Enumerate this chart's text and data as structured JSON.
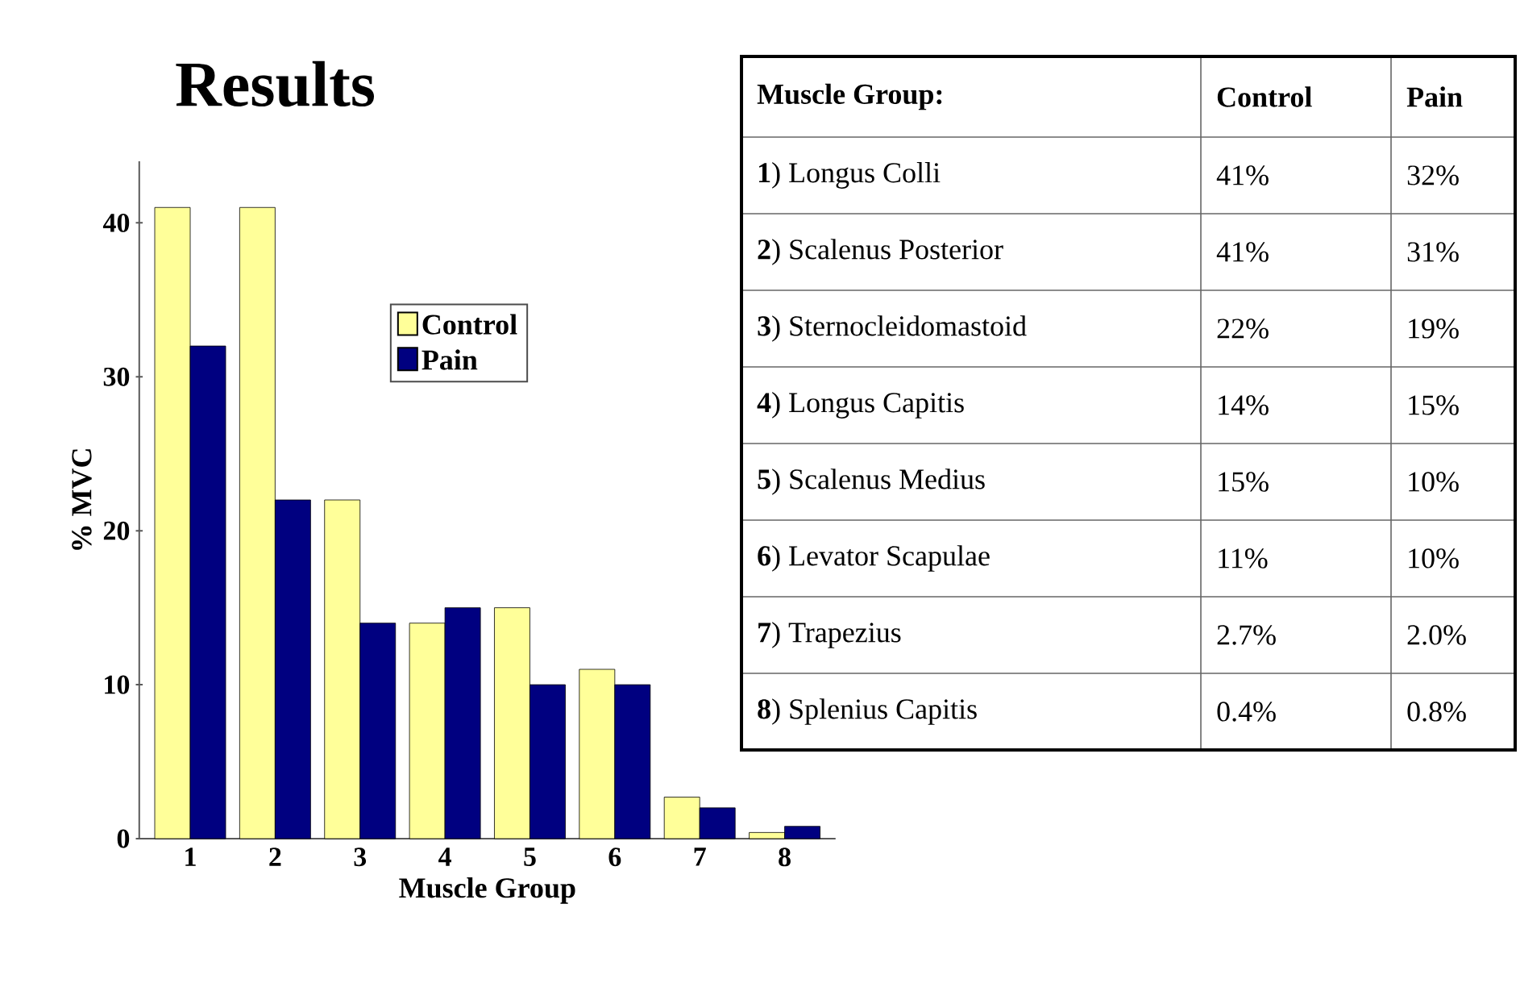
{
  "chart_data": {
    "type": "bar",
    "title": "Results",
    "xlabel": "Muscle Group",
    "ylabel": "% MVC",
    "categories": [
      "1",
      "2",
      "3",
      "4",
      "5",
      "6",
      "7",
      "8"
    ],
    "series": [
      {
        "name": "Control",
        "color": "#ffff99",
        "values": [
          41,
          41,
          22,
          14,
          15,
          11,
          2.7,
          0.4
        ]
      },
      {
        "name": "Pain",
        "color": "#000080",
        "values": [
          32,
          22,
          14,
          15,
          10,
          10,
          2,
          0.8
        ]
      }
    ],
    "ylim": [
      0,
      44
    ],
    "yticks": [
      0,
      10,
      20,
      30,
      40
    ],
    "grid": false,
    "legend": "top",
    "annotations": [
      "Muscle Group:",
      "Control",
      "Pain",
      "**1**) Longus Colli",
      "41%",
      "32%",
      "**2**) Scalenus Posterior",
      "41%",
      "31%",
      "**3**) Sternocleidomastoid",
      "22%",
      "19%",
      "**4**) Longus Capitis",
      "14%",
      "15%",
      "**5**) Scalenus Medius",
      "15%",
      "10%",
      "**6**) Levator Scapulae",
      "11%",
      "10%",
      "**7**) Trapezius",
      "2.7%",
      "2.0%",
      "**8**) Splenius Capitis",
      "0.4%",
      "0.8%"
    ]
  }
}
